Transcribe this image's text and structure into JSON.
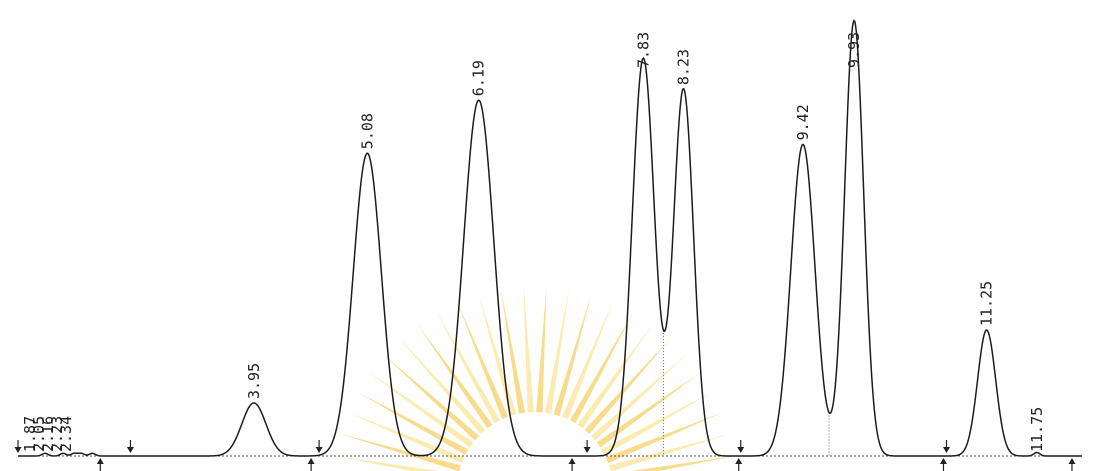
{
  "chart_data": {
    "type": "line",
    "title": "",
    "xlabel": "",
    "ylabel": "",
    "xlim": [
      1.6,
      12.2
    ],
    "ylim": [
      0,
      100
    ],
    "grid": false,
    "legend": "none",
    "baseline": 0,
    "peaks": [
      {
        "label": "1.87",
        "rt": 1.87,
        "height": 0.6,
        "width": 0.03
      },
      {
        "label": "2.05",
        "rt": 2.05,
        "height": 0.6,
        "width": 0.03
      },
      {
        "label": "2.16",
        "rt": 2.16,
        "height": 0.6,
        "width": 0.03
      },
      {
        "label": "2.23",
        "rt": 2.23,
        "height": 0.6,
        "width": 0.03
      },
      {
        "label": "2.34",
        "rt": 2.34,
        "height": 0.6,
        "width": 0.03
      },
      {
        "label": "3.95",
        "rt": 3.95,
        "height": 12.0,
        "width": 0.12
      },
      {
        "label": "5.08",
        "rt": 5.08,
        "height": 68.5,
        "width": 0.14
      },
      {
        "label": "6.19",
        "rt": 6.19,
        "height": 80.5,
        "width": 0.15
      },
      {
        "label": "7.83",
        "rt": 7.83,
        "height": 90.0,
        "width": 0.11
      },
      {
        "label": "8.23",
        "rt": 8.23,
        "height": 83.0,
        "width": 0.1
      },
      {
        "label": "9.42",
        "rt": 9.42,
        "height": 70.5,
        "width": 0.12
      },
      {
        "label": "9.93",
        "rt": 9.93,
        "height": 98.5,
        "width": 0.095
      },
      {
        "label": "11.25",
        "rt": 11.25,
        "height": 28.5,
        "width": 0.09
      },
      {
        "label": "11.75",
        "rt": 11.75,
        "height": 0.8,
        "width": 0.03
      }
    ],
    "valley_drops": [
      6.72,
      8.03,
      9.68
    ],
    "integration_markers": [
      {
        "x": 1.6,
        "dir": "down"
      },
      {
        "x": 2.72,
        "dir": "down"
      },
      {
        "x": 4.6,
        "dir": "down"
      },
      {
        "x": 7.27,
        "dir": "down"
      },
      {
        "x": 8.8,
        "dir": "down"
      },
      {
        "x": 10.85,
        "dir": "down"
      },
      {
        "x": 2.42,
        "dir": "up"
      },
      {
        "x": 4.52,
        "dir": "up"
      },
      {
        "x": 7.12,
        "dir": "up"
      },
      {
        "x": 8.78,
        "dir": "up"
      },
      {
        "x": 10.82,
        "dir": "up"
      },
      {
        "x": 12.1,
        "dir": "up"
      }
    ]
  },
  "watermark": {
    "colors": [
      "#f0c030",
      "#f7dd70"
    ],
    "icon": "sunburst-logo-icon"
  }
}
